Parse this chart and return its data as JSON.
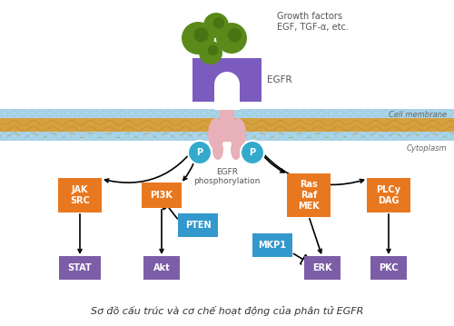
{
  "title": "Sơ đồ cấu trúc và cơ chế hoạt động của phân tử EGFR",
  "background_color": "#ffffff",
  "green_gf": "#5a8a1a",
  "egfr_col": "#7b5cbe",
  "tail_col": "#e8b0b8",
  "orange": "#e87820",
  "purple": "#7b5ea7",
  "blue": "#3399cc",
  "cyan": "#33aacc",
  "mem_orange": "#d4a040",
  "mem_blue": "#aad4e8",
  "p_label": "P",
  "egfr_label": "EGFR",
  "growth_label1": "Growth factors",
  "growth_label2": "EGF, TGF-α, etc.",
  "cell_membrane_label": "Cell membrane",
  "cytoplasm_label": "Cytoplasm",
  "phospho_label": "EGFR\nphosphorylation",
  "jak_src_label": "JAK\nSRC",
  "pi3k_label": "PI3K",
  "pten_label": "PTEN",
  "ras_raf_mek_label": "Ras\nRaf\nMEK",
  "plcy_dag_label": "PLCy\nDAG",
  "stat_label": "STAT",
  "akt_label": "Akt",
  "mkp1_label": "MKP1",
  "erk_label": "ERK",
  "pkc_label": "PKC"
}
